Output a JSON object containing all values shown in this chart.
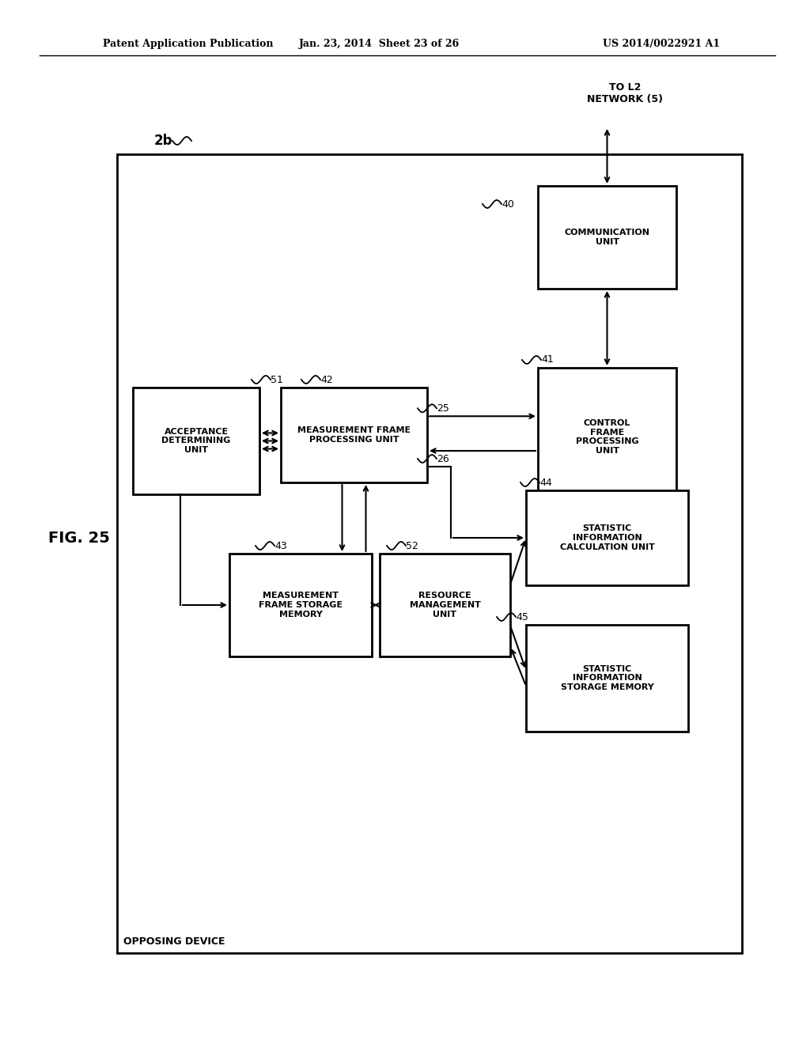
{
  "bg_color": "#ffffff",
  "title_left": "Patent Application Publication",
  "title_mid": "Jan. 23, 2014  Sheet 23 of 26",
  "title_right": "US 2014/0022921 A1",
  "fig_label": "FIG. 25",
  "device_label": "2b",
  "outer_box_label": "OPPOSING DEVICE",
  "network_label": "TO L2\nNETWORK (5)"
}
